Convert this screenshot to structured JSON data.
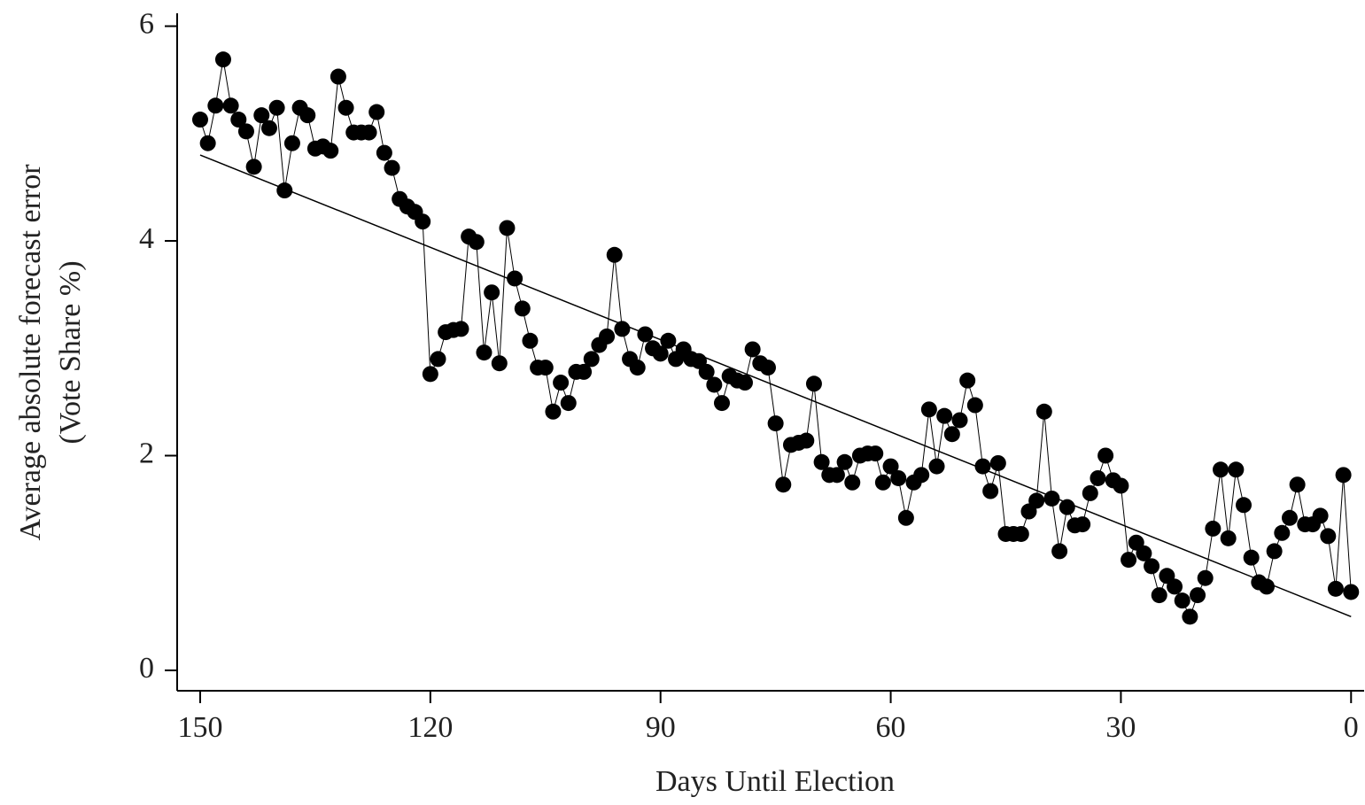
{
  "chart_data": {
    "type": "line",
    "xlabel": "Days Until Election",
    "ylabel": [
      "Average absolute forecast error",
      "(Vote Share %)"
    ],
    "x": [
      150,
      149,
      148,
      147,
      146,
      145,
      144,
      143,
      142,
      141,
      140,
      139,
      138,
      137,
      136,
      135,
      134,
      133,
      132,
      131,
      130,
      129,
      128,
      127,
      126,
      125,
      124,
      123,
      122,
      121,
      120,
      119,
      118,
      117,
      116,
      115,
      114,
      113,
      112,
      111,
      110,
      109,
      108,
      107,
      106,
      105,
      104,
      103,
      102,
      101,
      100,
      99,
      98,
      97,
      96,
      95,
      94,
      93,
      92,
      91,
      90,
      89,
      88,
      87,
      86,
      85,
      84,
      83,
      82,
      81,
      80,
      79,
      78,
      77,
      76,
      75,
      74,
      73,
      72,
      71,
      70,
      69,
      68,
      67,
      66,
      65,
      64,
      63,
      62,
      61,
      60,
      59,
      58,
      57,
      56,
      55,
      54,
      53,
      52,
      51,
      50,
      49,
      48,
      47,
      46,
      45,
      44,
      43,
      42,
      41,
      40,
      39,
      38,
      37,
      36,
      35,
      34,
      33,
      32,
      31,
      30,
      29,
      28,
      27,
      26,
      25,
      24,
      23,
      22,
      21,
      20,
      19,
      18,
      17,
      16,
      15,
      14,
      13,
      12,
      11,
      10,
      9,
      8,
      7,
      6,
      5,
      4,
      3,
      2,
      1,
      0
    ],
    "series": [
      {
        "color": "#000000",
        "values": [
          5.13,
          4.91,
          5.26,
          5.69,
          5.26,
          5.13,
          5.02,
          4.69,
          5.17,
          5.05,
          5.24,
          4.47,
          4.91,
          5.24,
          5.17,
          4.86,
          4.88,
          4.84,
          5.53,
          5.24,
          5.01,
          5.01,
          5.01,
          5.2,
          4.82,
          4.68,
          4.39,
          4.32,
          4.27,
          4.18,
          2.76,
          2.9,
          3.15,
          3.17,
          3.18,
          4.04,
          3.99,
          2.96,
          3.52,
          2.86,
          4.12,
          3.65,
          3.37,
          3.07,
          2.82,
          2.82,
          2.41,
          2.68,
          2.49,
          2.78,
          2.78,
          2.9,
          3.03,
          3.11,
          3.87,
          3.18,
          2.9,
          2.82,
          3.13,
          3.0,
          2.95,
          3.07,
          2.9,
          2.99,
          2.9,
          2.88,
          2.78,
          2.66,
          2.49,
          2.74,
          2.7,
          2.68,
          2.99,
          2.86,
          2.82,
          2.3,
          1.73,
          2.1,
          2.12,
          2.14,
          2.67,
          1.94,
          1.82,
          1.82,
          1.94,
          1.75,
          2.0,
          2.02,
          2.02,
          1.75,
          1.9,
          1.79,
          1.42,
          1.75,
          1.82,
          2.43,
          1.9,
          2.37,
          2.2,
          2.33,
          2.7,
          2.47,
          1.9,
          1.67,
          1.93,
          1.27,
          1.27,
          1.27,
          1.48,
          1.58,
          2.41,
          1.6,
          1.11,
          1.52,
          1.35,
          1.36,
          1.65,
          1.79,
          2.0,
          1.77,
          1.72,
          1.03,
          1.19,
          1.09,
          0.97,
          0.7,
          0.88,
          0.78,
          0.65,
          0.5,
          0.7,
          0.86,
          1.32,
          1.87,
          1.23,
          1.87,
          1.54,
          1.05,
          0.82,
          0.78,
          1.11,
          1.28,
          1.42,
          1.73,
          1.36,
          1.36,
          1.44,
          1.25,
          0.76,
          1.82,
          0.73
        ]
      }
    ],
    "trend_line": {
      "x": [
        150,
        0
      ],
      "values": [
        4.8,
        0.5
      ]
    },
    "xlim": [
      153,
      -1.7
    ],
    "xticks": [
      150,
      120,
      90,
      60,
      30,
      0
    ],
    "ylim": [
      -0.19,
      6.12
    ],
    "yticks": [
      0,
      2,
      4,
      6
    ]
  }
}
